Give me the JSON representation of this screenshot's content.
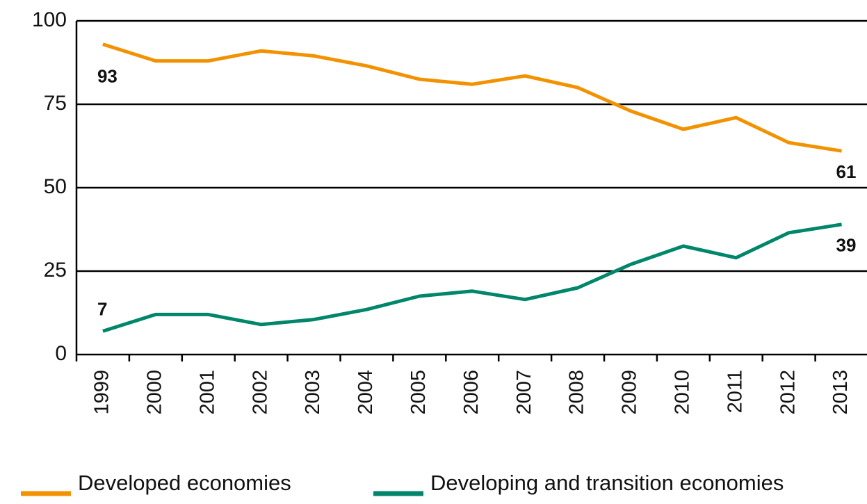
{
  "chart_data": {
    "type": "line",
    "categories": [
      "1999",
      "2000",
      "2001",
      "2002",
      "2003",
      "2004",
      "2005",
      "2006",
      "2007",
      "2008",
      "2009",
      "2010",
      "2011",
      "2012",
      "2013"
    ],
    "series": [
      {
        "name": "Developed economies",
        "color": "#f39200",
        "values": [
          93,
          88,
          88,
          91,
          89.5,
          86.5,
          82.5,
          81,
          83.5,
          80,
          73,
          67.5,
          71,
          63.5,
          61
        ]
      },
      {
        "name": "Developing and transition economies",
        "color": "#00866a",
        "values": [
          7,
          12,
          12,
          9,
          10.5,
          13.5,
          17.5,
          19,
          16.5,
          20,
          27,
          32.5,
          29,
          36.5,
          39
        ]
      }
    ],
    "ylim": [
      0,
      100
    ],
    "yticks": [
      0,
      25,
      50,
      75,
      100
    ],
    "grid": true
  }
}
